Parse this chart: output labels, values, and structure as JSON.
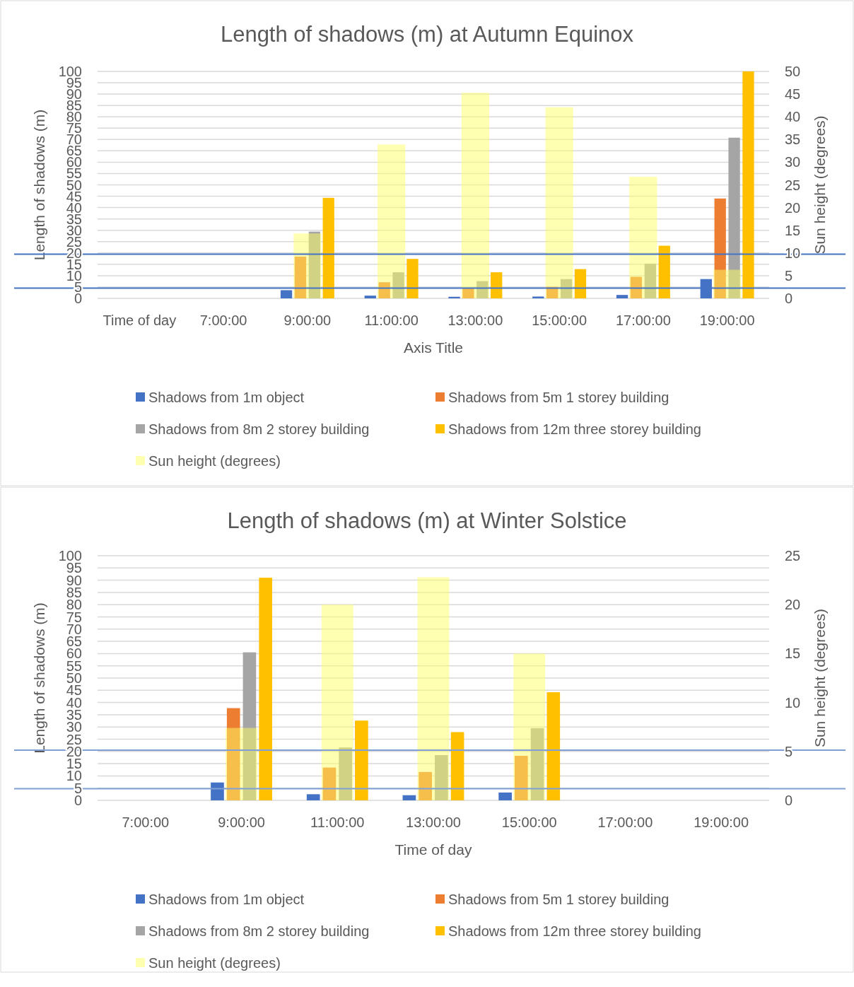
{
  "chart_data": [
    {
      "type": "bar",
      "title": "Length of shadows (m) at Autumn Equinox",
      "xlabel": "Axis Title",
      "ylabel": "Length of shadows (m)",
      "y2label": "Sun height (degrees)",
      "categories": [
        "Time of day",
        "7:00:00",
        "9:00:00",
        "11:00:00",
        "13:00:00",
        "15:00:00",
        "17:00:00",
        "19:00:00"
      ],
      "series": [
        {
          "name": "Shadows from 1m object",
          "color": "#4472c4",
          "values": [
            null,
            null,
            3.6,
            1.2,
            0.7,
            0.8,
            1.5,
            8.5
          ]
        },
        {
          "name": "Shadows from 5m 1 storey building",
          "color": "#ed7d31",
          "values": [
            null,
            null,
            18.4,
            7.1,
            4.5,
            5.1,
            9.5,
            44
          ]
        },
        {
          "name": "Shadows from 8m 2 storey building",
          "color": "#a5a5a5",
          "values": [
            null,
            null,
            29.4,
            11.5,
            7.6,
            8.5,
            15.3,
            70.8
          ]
        },
        {
          "name": "Shadows from 12m three storey building",
          "color": "#ffc000",
          "values": [
            null,
            null,
            44.3,
            17.4,
            11.5,
            12.9,
            23.2,
            100
          ]
        },
        {
          "name": "Sun height (degrees)",
          "color": "#ffff66",
          "axis": "y2",
          "values": [
            null,
            null,
            14.3,
            33.9,
            45.3,
            42.1,
            26.8,
            6.3
          ]
        }
      ],
      "ylim": [
        0,
        100
      ],
      "yticks": [
        0,
        5,
        10,
        15,
        20,
        25,
        30,
        35,
        40,
        45,
        50,
        55,
        60,
        65,
        70,
        75,
        80,
        85,
        90,
        95,
        100
      ],
      "y2lim": [
        0,
        50
      ],
      "y2ticks": [
        0,
        5,
        10,
        15,
        20,
        25,
        30,
        35,
        40,
        45,
        50
      ],
      "ref_lines": [
        {
          "axis": "y",
          "value": 19.5,
          "color": "#4472c4"
        },
        {
          "axis": "y",
          "value": 4.5,
          "color": "#4472c4"
        }
      ],
      "grid": "y",
      "legend": "bottom"
    },
    {
      "type": "bar",
      "title": "Length of shadows (m) at Winter Solstice",
      "xlabel": "Time of day",
      "ylabel": "Length of shadows (m)",
      "y2label": "Sun height (degrees)",
      "categories": [
        "7:00:00",
        "9:00:00",
        "11:00:00",
        "13:00:00",
        "15:00:00",
        "17:00:00",
        "19:00:00"
      ],
      "series": [
        {
          "name": "Shadows from 1m object",
          "color": "#4472c4",
          "values": [
            null,
            7.3,
            2.5,
            2.1,
            3.2,
            null,
            null
          ]
        },
        {
          "name": "Shadows from 5m 1 storey building",
          "color": "#ed7d31",
          "values": [
            null,
            37.7,
            13.4,
            11.6,
            18.2,
            null,
            null
          ]
        },
        {
          "name": "Shadows from 8m 2 storey building",
          "color": "#a5a5a5",
          "values": [
            null,
            60.5,
            21.6,
            18.5,
            29.5,
            null,
            null
          ]
        },
        {
          "name": "Shadows from 12m three storey building",
          "color": "#ffc000",
          "values": [
            null,
            91,
            32.6,
            27.9,
            44.2,
            null,
            null
          ]
        },
        {
          "name": "Sun height (degrees)",
          "color": "#ffff66",
          "axis": "y2",
          "values": [
            null,
            7.4,
            20,
            22.8,
            15,
            null,
            null
          ]
        }
      ],
      "ylim": [
        0,
        100
      ],
      "yticks": [
        0,
        5,
        10,
        15,
        20,
        25,
        30,
        35,
        40,
        45,
        50,
        55,
        60,
        65,
        70,
        75,
        80,
        85,
        90,
        95,
        100
      ],
      "y2lim": [
        0,
        25
      ],
      "y2ticks": [
        0,
        5,
        10,
        15,
        20,
        25
      ],
      "ref_lines": [
        {
          "axis": "y",
          "value": 20.5,
          "color": "#7f9fd6"
        },
        {
          "axis": "y",
          "value": 4.8,
          "color": "#7f9fd6"
        }
      ],
      "grid": "y",
      "legend": "bottom"
    }
  ]
}
